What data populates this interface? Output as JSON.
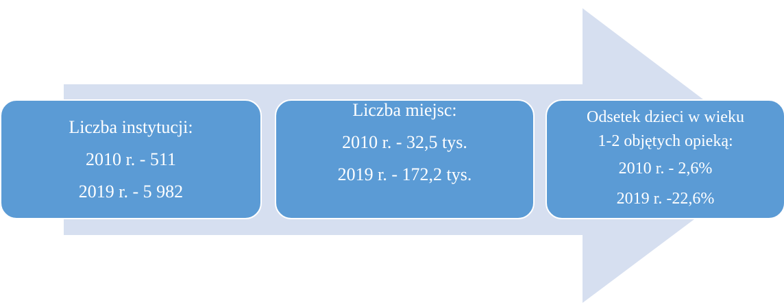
{
  "nodes": [
    {
      "lines": [
        "Liczba instytucji:",
        "2010 r. - 511",
        "2019 r. - 5 982"
      ]
    },
    {
      "lines": [
        "Liczba miejsc:",
        "2010 r. - 32,5 tys.",
        "2019 r. - 172,2 tys."
      ]
    },
    {
      "lines": [
        "Odsetek dzieci w wieku",
        "1-2 objętych opieką:",
        "2010 r. - 2,6%",
        "2019 r. -22,6%"
      ]
    }
  ]
}
